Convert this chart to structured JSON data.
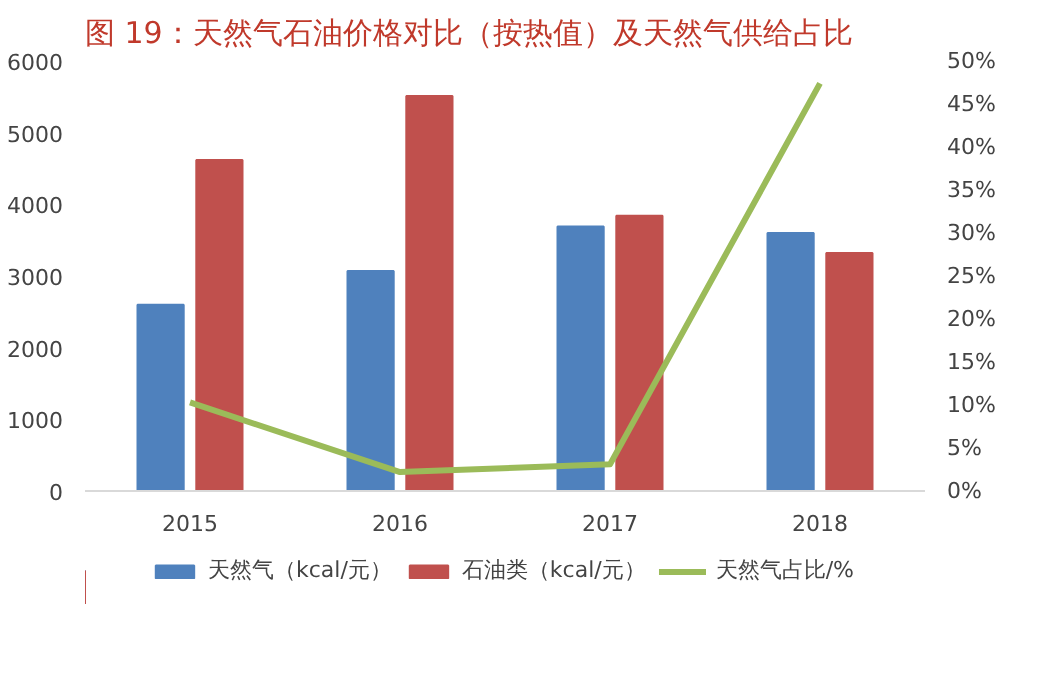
{
  "chart_data": {
    "type": "bar",
    "title": "图 19：天然气石油价格对比（按热值）及天然气供给占比",
    "categories": [
      "2015",
      "2016",
      "2017",
      "2018"
    ],
    "series": [
      {
        "name": "天然气（kcal/元）",
        "color": "#4f81bd",
        "values": [
          2600,
          3070,
          3690,
          3600
        ]
      },
      {
        "name": "石油类（kcal/元）",
        "color": "#c0504d",
        "values": [
          4620,
          5510,
          3840,
          3320
        ]
      },
      {
        "name": "天然气占比/%",
        "type": "line",
        "axis": "y2",
        "color": "#9bbb59",
        "values": [
          10.3,
          2.2,
          3.1,
          47.4
        ]
      }
    ],
    "ylim": [
      0,
      6000
    ],
    "yticks": [
      0,
      1000,
      2000,
      3000,
      4000,
      5000,
      6000
    ],
    "y2lim": [
      0,
      50
    ],
    "y2ticks": [
      {
        "value": 0,
        "label": "0%"
      },
      {
        "value": 5,
        "label": "5%"
      },
      {
        "value": 10,
        "label": "10%"
      },
      {
        "value": 15,
        "label": "15%"
      },
      {
        "value": 20,
        "label": "20%"
      },
      {
        "value": 25,
        "label": "25%"
      },
      {
        "value": 30,
        "label": "30%"
      },
      {
        "value": 35,
        "label": "35%"
      },
      {
        "value": 40,
        "label": "40%"
      },
      {
        "value": 45,
        "label": "45%"
      },
      {
        "value": 50,
        "label": "50%"
      }
    ],
    "grid": false,
    "legend": "bottom"
  }
}
